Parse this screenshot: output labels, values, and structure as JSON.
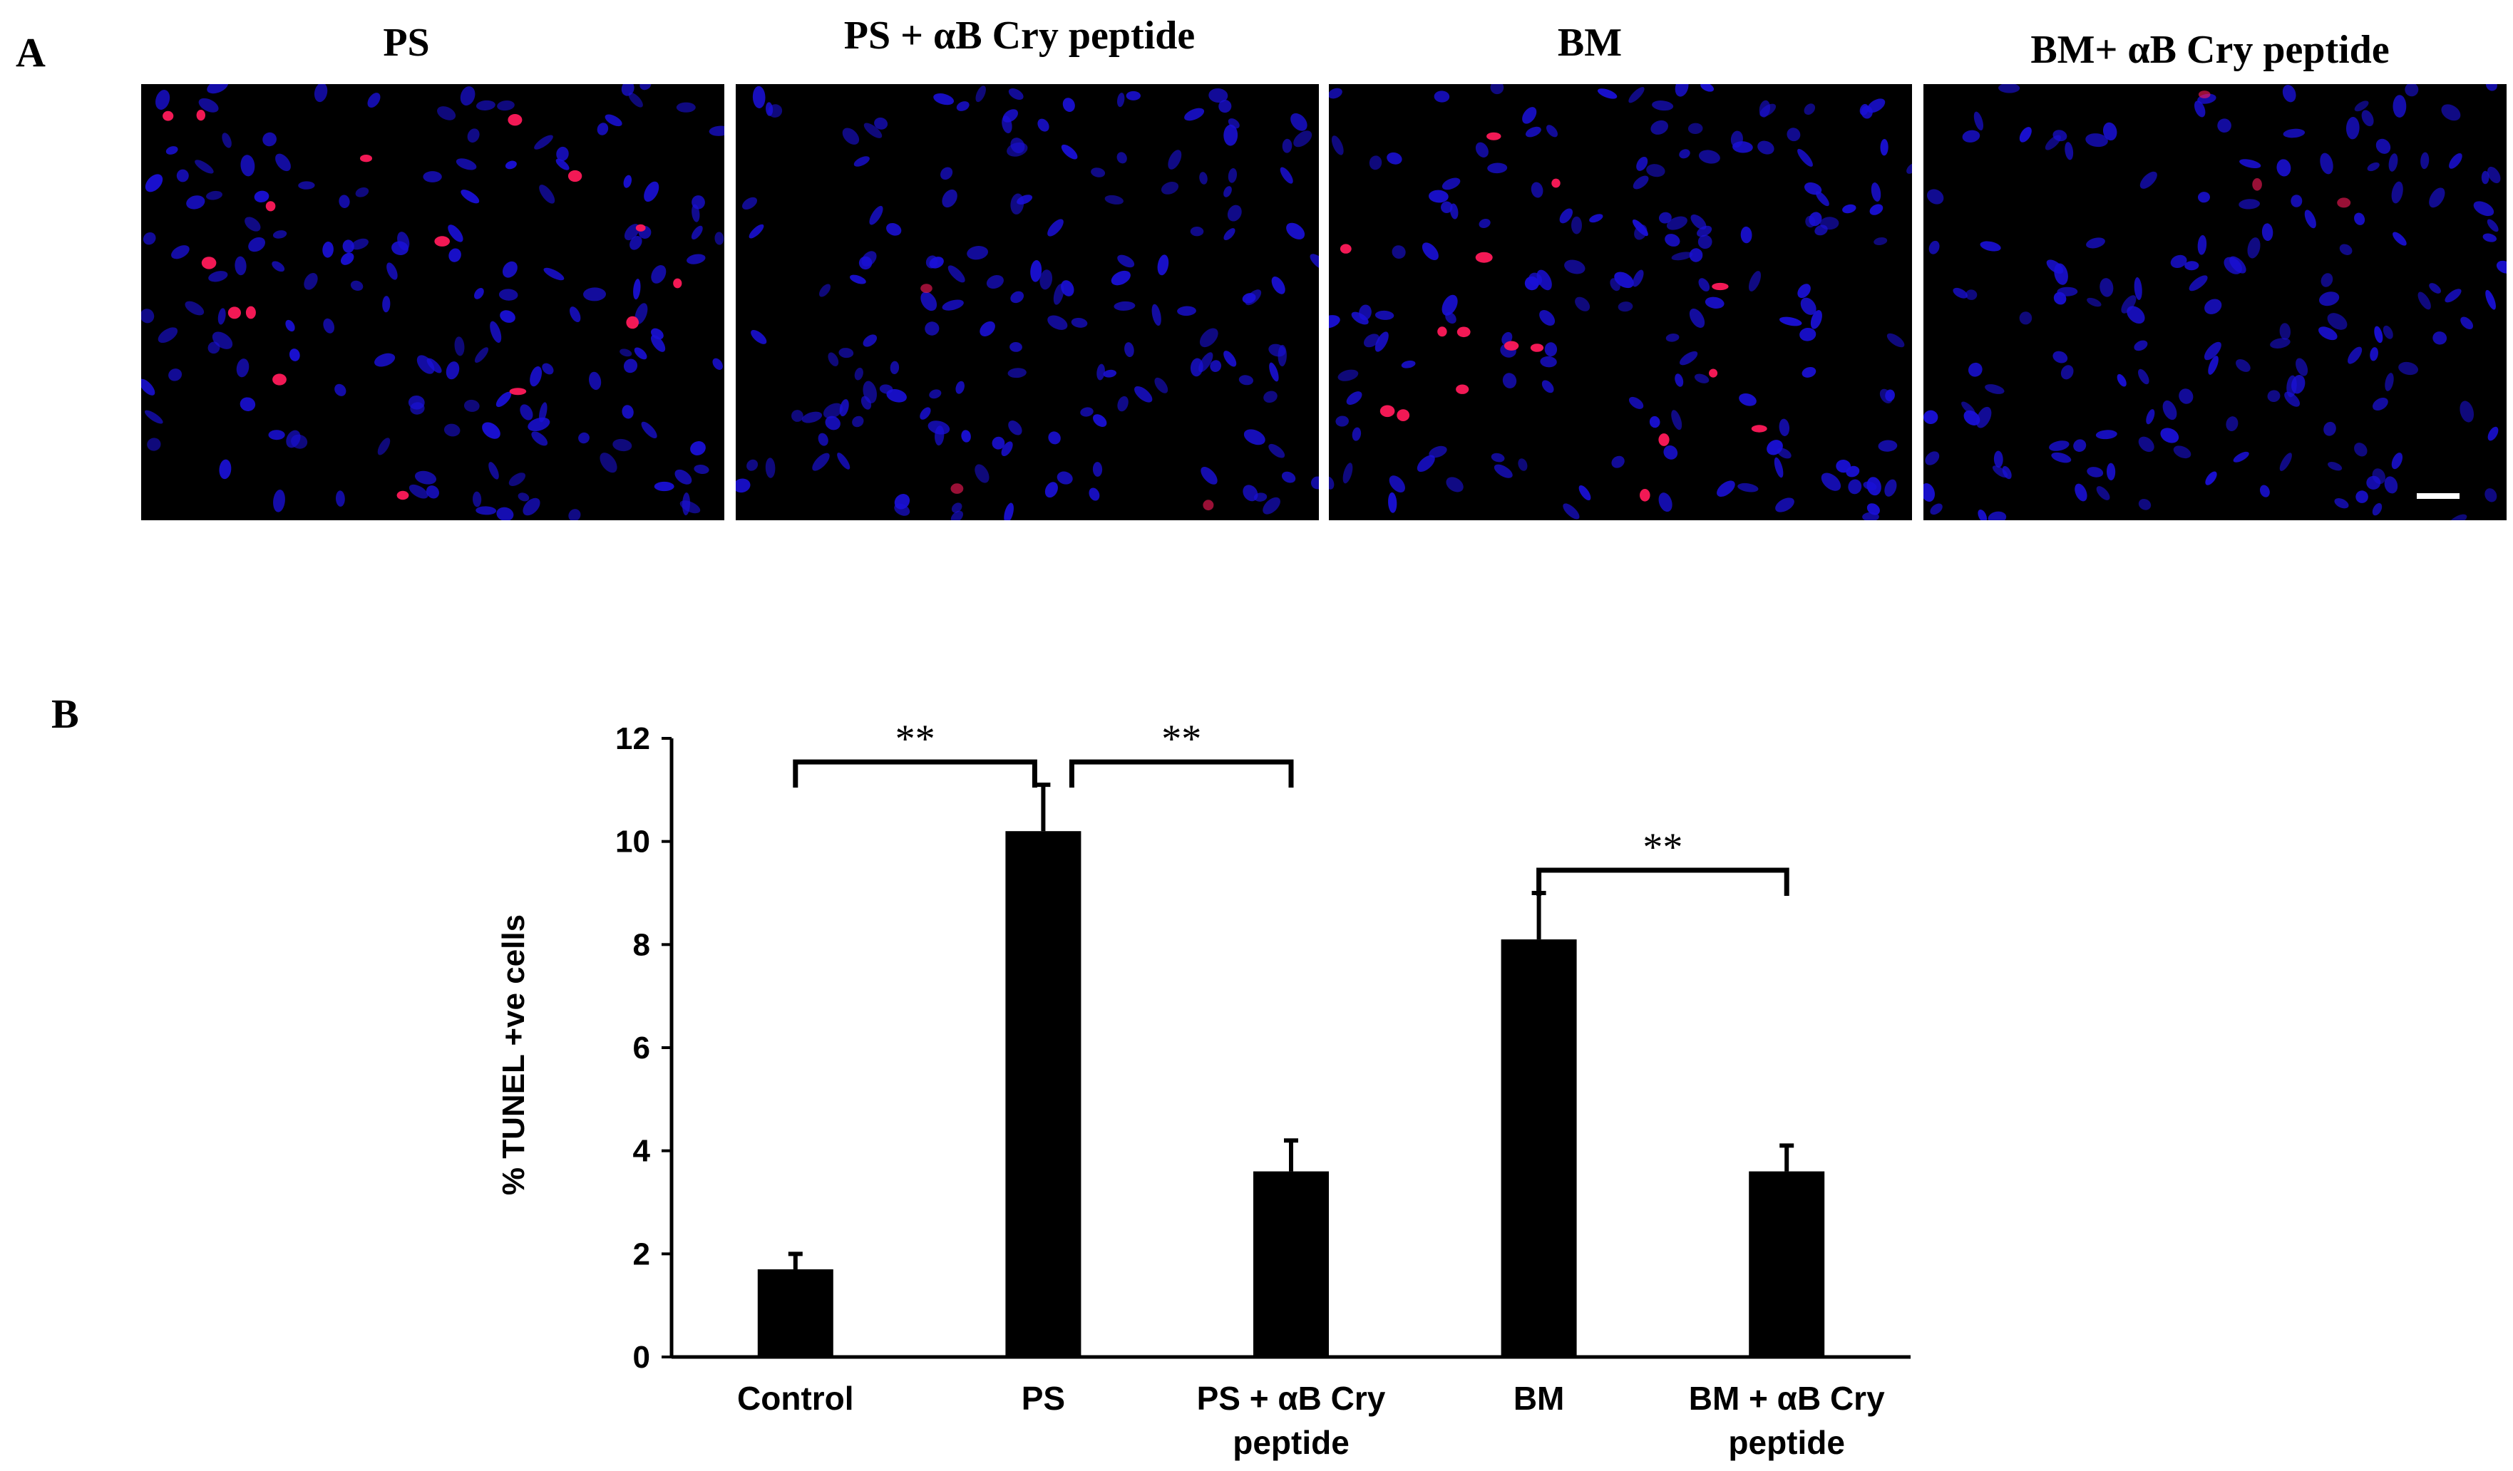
{
  "panel_a": {
    "letter": "A",
    "images": [
      {
        "title": "PS",
        "red_density": "high"
      },
      {
        "title": "PS + αB Cry peptide",
        "red_density": "low"
      },
      {
        "title": "BM",
        "red_density": "high"
      },
      {
        "title": "BM+ αB Cry peptide",
        "red_density": "low"
      }
    ],
    "colors": {
      "nuclei": "#1a10d8",
      "tunel": "#ff1a5a",
      "background": "#000000"
    }
  },
  "panel_b": {
    "letter": "B"
  },
  "chart_data": {
    "type": "bar",
    "categories": [
      [
        "Control"
      ],
      [
        "PS"
      ],
      [
        "PS + αB Cry",
        "peptide"
      ],
      [
        "BM"
      ],
      [
        "BM + αB Cry",
        "peptide"
      ]
    ],
    "values": [
      1.7,
      10.2,
      3.6,
      8.1,
      3.6
    ],
    "errors": [
      0.3,
      0.9,
      0.6,
      0.9,
      0.5
    ],
    "ylabel": "% TUNEL +ve cells",
    "ylim": [
      0,
      12
    ],
    "yticks": [
      "0",
      "2",
      "4",
      "6",
      "8",
      "10",
      "12"
    ],
    "bar_color": "#000000",
    "significance": [
      {
        "from": 0,
        "to": 1,
        "label": "**"
      },
      {
        "from": 1,
        "to": 2,
        "label": "**"
      },
      {
        "from": 3,
        "to": 4,
        "label": "**"
      }
    ]
  }
}
